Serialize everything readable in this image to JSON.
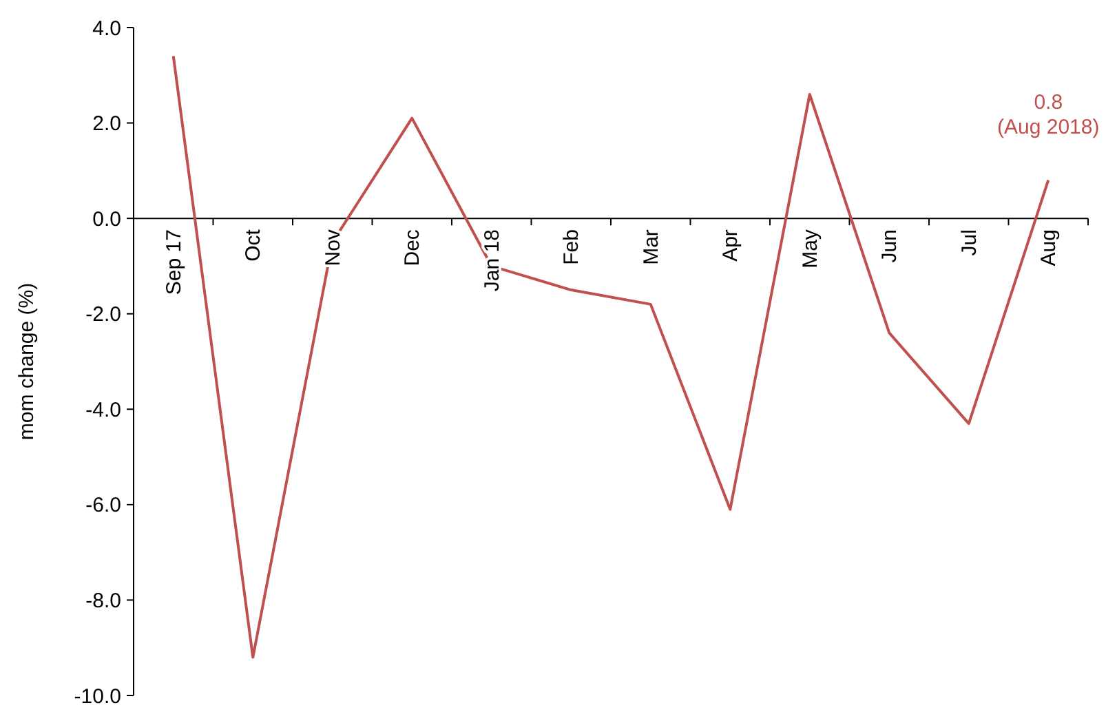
{
  "chart_data": {
    "type": "line",
    "ylabel": "mom change (%)",
    "categories": [
      "Sep 17",
      "Oct",
      "Nov",
      "Dec",
      "Jan 18",
      "Feb",
      "Mar",
      "Apr",
      "May",
      "Jun",
      "Jul",
      "Aug"
    ],
    "series": [
      {
        "color": "#c0504d",
        "values": [
          3.4,
          -9.2,
          -0.5,
          2.1,
          -1.0,
          -1.5,
          -1.8,
          -6.1,
          2.6,
          -2.4,
          -4.3,
          0.8
        ]
      }
    ],
    "ylim": [
      -10,
      4
    ],
    "yticks": [
      {
        "value": 4,
        "label": "4.0"
      },
      {
        "value": 2,
        "label": "2.0"
      },
      {
        "value": 0,
        "label": "0.0"
      },
      {
        "value": -2,
        "label": "-2.0"
      },
      {
        "value": -4,
        "label": "-4.0"
      },
      {
        "value": -6,
        "label": "-6.0"
      },
      {
        "value": -8,
        "label": "-8.0"
      },
      {
        "value": -10,
        "label": "-10.0"
      }
    ],
    "grid": false,
    "marker": "none",
    "line_style": "solid",
    "annotations": [
      {
        "text": "0.8\n(Aug 2018)",
        "x": "Aug",
        "y": 0.8
      }
    ]
  }
}
